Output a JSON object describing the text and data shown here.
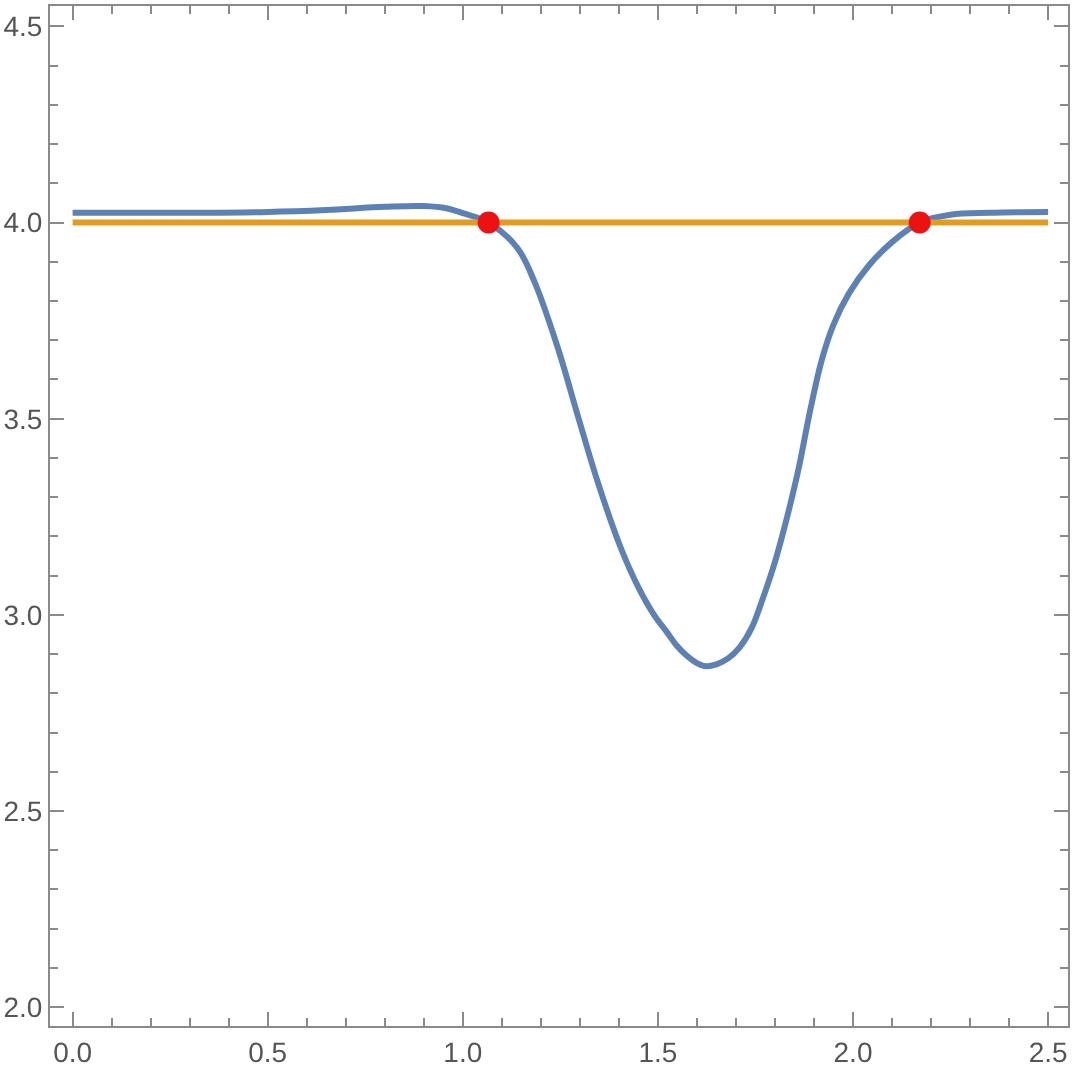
{
  "chart_data": {
    "type": "line",
    "xlim": [
      -0.058,
      2.551
    ],
    "ylim": [
      1.952,
      4.552
    ],
    "xticks": [
      {
        "value": 0,
        "label": "0.0"
      },
      {
        "value": 0.1,
        "label": null
      },
      {
        "value": 0.2,
        "label": null
      },
      {
        "value": 0.3,
        "label": null
      },
      {
        "value": 0.4,
        "label": null
      },
      0.5,
      {
        "value": 0.6,
        "label": null
      },
      {
        "value": 0.7,
        "label": null
      },
      {
        "value": 0.8,
        "label": null
      },
      {
        "value": 0.9,
        "label": null
      },
      {
        "value": 1,
        "label": "1.0"
      },
      {
        "value": 1.1,
        "label": null
      },
      {
        "value": 1.2,
        "label": null
      },
      {
        "value": 1.3,
        "label": null
      },
      {
        "value": 1.4,
        "label": null
      },
      1.5,
      {
        "value": 1.6,
        "label": null
      },
      {
        "value": 1.7,
        "label": null
      },
      {
        "value": 1.8,
        "label": null
      },
      {
        "value": 1.9,
        "label": null
      },
      {
        "value": 2,
        "label": "2.0"
      },
      {
        "value": 2.1,
        "label": null
      },
      {
        "value": 2.2,
        "label": null
      },
      {
        "value": 2.3,
        "label": null
      },
      {
        "value": 2.4,
        "label": null
      },
      2.5
    ],
    "yticks": [
      {
        "value": 2,
        "label": "2.0"
      },
      {
        "value": 2.1,
        "label": null
      },
      {
        "value": 2.2,
        "label": null
      },
      {
        "value": 2.3,
        "label": null
      },
      {
        "value": 2.4,
        "label": null
      },
      2.5,
      {
        "value": 2.6,
        "label": null
      },
      {
        "value": 2.7,
        "label": null
      },
      {
        "value": 2.8,
        "label": null
      },
      {
        "value": 2.9,
        "label": null
      },
      {
        "value": 3,
        "label": "3.0"
      },
      {
        "value": 3.1,
        "label": null
      },
      {
        "value": 3.2,
        "label": null
      },
      {
        "value": 3.3,
        "label": null
      },
      {
        "value": 3.4,
        "label": null
      },
      3.5,
      {
        "value": 3.6,
        "label": null
      },
      {
        "value": 3.7,
        "label": null
      },
      {
        "value": 3.8,
        "label": null
      },
      {
        "value": 3.9,
        "label": null
      },
      {
        "value": 4,
        "label": "4.0"
      },
      {
        "value": 4.1,
        "label": null
      },
      {
        "value": 4.2,
        "label": null
      },
      {
        "value": 4.3,
        "label": null
      },
      {
        "value": 4.4,
        "label": null
      },
      4.5
    ],
    "grid": false,
    "marker": "none",
    "line_style": "solid",
    "series": [
      {
        "color": "#5e81b5",
        "x": [
          0,
          0.3,
          0.5,
          0.65,
          0.8,
          0.9,
          0.96,
          1.0,
          1.066,
          1.14,
          1.184,
          1.244,
          1.294,
          1.345,
          1.404,
          1.45,
          1.49,
          1.523,
          1.548,
          1.575,
          1.6,
          1.624,
          1.65,
          1.68,
          1.71,
          1.74,
          1.77,
          1.8,
          1.83,
          1.86,
          1.89,
          1.92,
          1.95,
          1.99,
          2.04,
          2.1,
          2.171,
          2.25,
          2.35,
          2.5
        ],
        "values": [
          4.025,
          4.025,
          4.027,
          4.032,
          4.04,
          4.042,
          4.036,
          4.024,
          4.0,
          3.935,
          3.848,
          3.679,
          3.51,
          3.341,
          3.173,
          3.07,
          3.0,
          2.956,
          2.922,
          2.895,
          2.877,
          2.869,
          2.874,
          2.889,
          2.918,
          2.966,
          3.045,
          3.135,
          3.245,
          3.37,
          3.52,
          3.65,
          3.74,
          3.82,
          3.89,
          3.95,
          4.0,
          4.02,
          4.025,
          4.027
        ]
      },
      {
        "color": "#e19c24",
        "x": [
          0,
          2.5
        ],
        "values": [
          4,
          4
        ]
      },
      {
        "type": "scatter",
        "color": "#ee1111",
        "marker": "circle",
        "x": [
          1.066,
          2.171
        ],
        "values": [
          4,
          4
        ]
      }
    ]
  }
}
